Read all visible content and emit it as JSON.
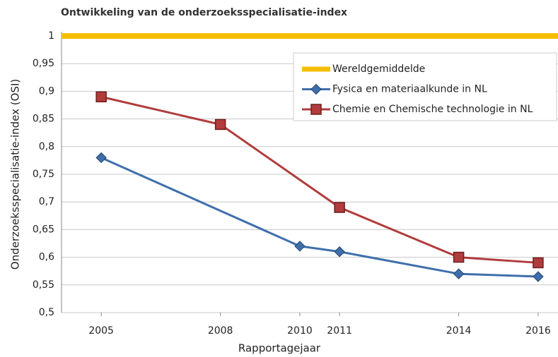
{
  "chart_data": {
    "type": "line",
    "title": "Ontwikkeling van de onderzoeksspecialisatie-index",
    "y_label": "Onderzoeksspecialisatie-index  (OSI)",
    "x_label": "Rapportagejaar",
    "xlim": [
      2004,
      2016.5
    ],
    "xticks": [
      2005,
      2008,
      2010,
      2011,
      2014,
      2016
    ],
    "ylim": [
      0.5,
      1
    ],
    "yticks": [
      {
        "value": 0.5,
        "label": "0,5"
      },
      {
        "value": 0.55,
        "label": "0,55"
      },
      {
        "value": 0.6,
        "label": "0,6"
      },
      {
        "value": 0.65,
        "label": "0,65"
      },
      {
        "value": 0.7,
        "label": "0,7"
      },
      {
        "value": 0.75,
        "label": "0,75"
      },
      {
        "value": 0.8,
        "label": "0,8"
      },
      {
        "value": 0.85,
        "label": "0,85"
      },
      {
        "value": 0.9,
        "label": "0,9"
      },
      {
        "value": 0.95,
        "label": "0,95"
      },
      1
    ],
    "grid": true,
    "legend": "upper right",
    "series": [
      {
        "name": "Wereldgemiddelde",
        "color": "#f5be00",
        "marker": "none",
        "x": [
          2004,
          2016.5
        ],
        "values": [
          1,
          1
        ]
      },
      {
        "name": "Fysica en materiaalkunde in NL",
        "color": "#3f6fab",
        "marker": "diamond",
        "x": [
          2005,
          2010,
          2011,
          2014,
          2016
        ],
        "values": [
          0.78,
          0.62,
          0.61,
          0.57,
          0.565
        ]
      },
      {
        "name": "Chemie en Chemische technologie in NL",
        "color": "#b13c3c",
        "marker": "square",
        "x": [
          2005,
          2008,
          2011,
          2014,
          2016
        ],
        "values": [
          0.89,
          0.84,
          0.69,
          0.6,
          0.59
        ]
      }
    ]
  }
}
